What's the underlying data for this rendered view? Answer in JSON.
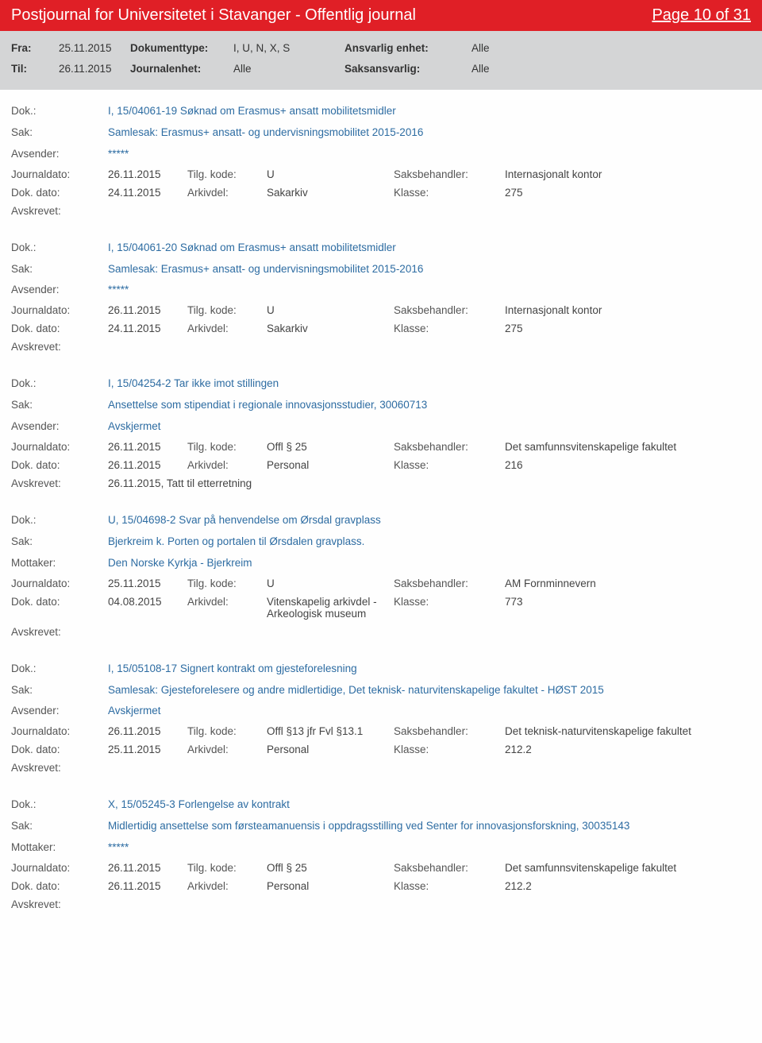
{
  "header": {
    "title": "Postjournal for Universitetet i Stavanger - Offentlig journal",
    "page_label": "Page 10 of 31"
  },
  "filter": {
    "fra_label": "Fra:",
    "fra_value": "25.11.2015",
    "til_label": "Til:",
    "til_value": "26.11.2015",
    "doktype_label": "Dokumenttype:",
    "doktype_value": "I, U, N, X, S",
    "journalenhet_label": "Journalenhet:",
    "journalenhet_value": "Alle",
    "ansvarlig_label": "Ansvarlig enhet:",
    "ansvarlig_value": "Alle",
    "saksansvarlig_label": "Saksansvarlig:",
    "saksansvarlig_value": "Alle"
  },
  "labels": {
    "dok": "Dok.:",
    "sak": "Sak:",
    "avsender": "Avsender:",
    "mottaker": "Mottaker:",
    "journaldato": "Journaldato:",
    "dokdato": "Dok. dato:",
    "tilgkode": "Tilg. kode:",
    "arkivdel": "Arkivdel:",
    "saksbehandler": "Saksbehandler:",
    "klasse": "Klasse:",
    "avskrevet": "Avskrevet:"
  },
  "entries": [
    {
      "dok": "I, 15/04061-19 Søknad om Erasmus+ ansatt mobilitetsmidler",
      "sak": "Samlesak: Erasmus+ ansatt- og undervisningsmobilitet 2015-2016",
      "sender_label": "Avsender:",
      "sender": "*****",
      "journaldato": "26.11.2015",
      "tilgkode": "U",
      "saksbehandler": "Internasjonalt kontor",
      "dokdato": "24.11.2015",
      "arkivdel": "Sakarkiv",
      "klasse": "275",
      "avskrevet": ""
    },
    {
      "dok": "I, 15/04061-20 Søknad om Erasmus+ ansatt mobilitetsmidler",
      "sak": "Samlesak: Erasmus+ ansatt- og undervisningsmobilitet 2015-2016",
      "sender_label": "Avsender:",
      "sender": "*****",
      "journaldato": "26.11.2015",
      "tilgkode": "U",
      "saksbehandler": "Internasjonalt kontor",
      "dokdato": "24.11.2015",
      "arkivdel": "Sakarkiv",
      "klasse": "275",
      "avskrevet": ""
    },
    {
      "dok": "I, 15/04254-2 Tar ikke imot stillingen",
      "sak": "Ansettelse som stipendiat i regionale innovasjonsstudier, 30060713",
      "sender_label": "Avsender:",
      "sender": "Avskjermet",
      "journaldato": "26.11.2015",
      "tilgkode": "Offl § 25",
      "saksbehandler": "Det samfunnsvitenskapelige fakultet",
      "dokdato": "26.11.2015",
      "arkivdel": "Personal",
      "klasse": "216",
      "avskrevet": "26.11.2015, Tatt til etterretning"
    },
    {
      "dok": "U, 15/04698-2 Svar på henvendelse om Ørsdal gravplass",
      "sak": "Bjerkreim k. Porten og portalen til Ørsdalen gravplass.",
      "sender_label": "Mottaker:",
      "sender": "Den Norske Kyrkja - Bjerkreim",
      "journaldato": "25.11.2015",
      "tilgkode": "U",
      "saksbehandler": "AM Fornminnevern",
      "dokdato": "04.08.2015",
      "arkivdel": "Vitenskapelig arkivdel - Arkeologisk museum",
      "klasse": "773",
      "avskrevet": ""
    },
    {
      "dok": "I, 15/05108-17 Signert kontrakt om gjesteforelesning",
      "sak": "Samlesak: Gjesteforelesere og andre midlertidige, Det teknisk- naturvitenskapelige fakultet - HØST 2015",
      "sender_label": "Avsender:",
      "sender": "Avskjermet",
      "journaldato": "26.11.2015",
      "tilgkode": "Offl §13 jfr Fvl §13.1",
      "saksbehandler": "Det teknisk-naturvitenskapelige fakultet",
      "dokdato": "25.11.2015",
      "arkivdel": "Personal",
      "klasse": "212.2",
      "avskrevet": ""
    },
    {
      "dok": "X, 15/05245-3 Forlengelse av kontrakt",
      "sak": "Midlertidig ansettelse som førsteamanuensis i oppdragsstilling ved Senter for innovasjonsforskning, 30035143",
      "sender_label": "Mottaker:",
      "sender": "*****",
      "journaldato": "26.11.2015",
      "tilgkode": "Offl § 25",
      "saksbehandler": "Det samfunnsvitenskapelige fakultet",
      "dokdato": "26.11.2015",
      "arkivdel": "Personal",
      "klasse": "212.2",
      "avskrevet": ""
    }
  ],
  "style": {
    "header_bg": "#e01f26",
    "filter_bg": "#d4d5d6",
    "link_color": "#2d6ca2",
    "text_color": "#3b3b3b"
  }
}
